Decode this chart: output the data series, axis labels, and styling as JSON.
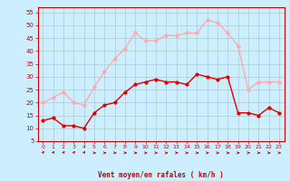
{
  "xlabel": "Vent moyen/en rafales ( km/h )",
  "bg_color": "#cceeff",
  "grid_color": "#aacccc",
  "line1_color": "#dd0000",
  "line2_color": "#ffaaaa",
  "tick_color": "#cc0000",
  "spine_color": "#cc0000",
  "ylim": [
    5,
    57
  ],
  "xlim": [
    -0.5,
    23.5
  ],
  "yticks": [
    5,
    10,
    15,
    20,
    25,
    30,
    35,
    40,
    45,
    50,
    55
  ],
  "xticks": [
    0,
    1,
    2,
    3,
    4,
    5,
    6,
    7,
    8,
    9,
    10,
    11,
    12,
    13,
    14,
    15,
    16,
    17,
    18,
    19,
    20,
    21,
    22,
    23
  ],
  "mean_wind": [
    13,
    14,
    11,
    11,
    10,
    16,
    19,
    20,
    24,
    27,
    28,
    29,
    28,
    28,
    27,
    31,
    30,
    29,
    30,
    16,
    16,
    15,
    18,
    16
  ],
  "gust_wind": [
    20,
    22,
    24,
    20,
    19,
    26,
    32,
    37,
    41,
    47,
    44,
    44,
    46,
    46,
    47,
    47,
    52,
    51,
    47,
    42,
    25,
    28,
    28,
    28
  ],
  "arrows": [
    45,
    45,
    45,
    45,
    45,
    0,
    0,
    0,
    0,
    0,
    0,
    0,
    0,
    0,
    0,
    0,
    0,
    0,
    0,
    0,
    0,
    0,
    0,
    0
  ]
}
